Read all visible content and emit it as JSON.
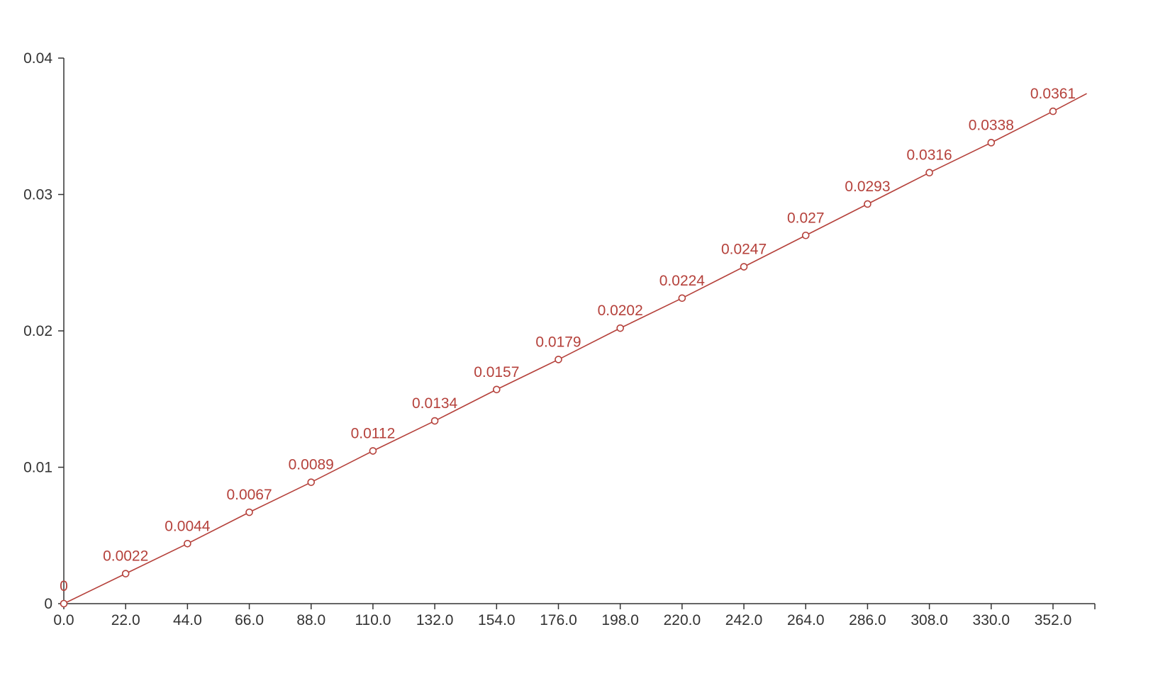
{
  "chart_data": {
    "type": "line",
    "title": "",
    "xlabel": "",
    "ylabel": "",
    "x_tick_labels": [
      "0.0",
      "22.0",
      "44.0",
      "66.0",
      "88.0",
      "110.0",
      "132.0",
      "154.0",
      "176.0",
      "198.0",
      "220.0",
      "242.0",
      "264.0",
      "286.0",
      "308.0",
      "330.0",
      "352.0"
    ],
    "y_tick_labels": [
      "0",
      "0.01",
      "0.02",
      "0.03",
      "0.04"
    ],
    "y_ticks": [
      0,
      0.01,
      0.02,
      0.03,
      0.04
    ],
    "xlim": [
      0,
      365
    ],
    "ylim": [
      0,
      0.04
    ],
    "grid": false,
    "color": "#b5413b",
    "series": [
      {
        "x": [
          0,
          22,
          44,
          66,
          88,
          110,
          132,
          154,
          176,
          198,
          220,
          242,
          264,
          286,
          308,
          330,
          352
        ],
        "values": [
          0,
          0.0022,
          0.0044,
          0.0067,
          0.0089,
          0.0112,
          0.0134,
          0.0157,
          0.0179,
          0.0202,
          0.0224,
          0.0247,
          0.027,
          0.0293,
          0.0316,
          0.0338,
          0.0361
        ],
        "labels": [
          "0",
          "0.0022",
          "0.0044",
          "0.0067",
          "0.0089",
          "0.0112",
          "0.0134",
          "0.0157",
          "0.0179",
          "0.0202",
          "0.0224",
          "0.0247",
          "0.027",
          "0.0293",
          "0.0316",
          "0.0338",
          "0.0361"
        ]
      }
    ],
    "trend_end": {
      "x": 364,
      "y": 0.0374
    }
  }
}
